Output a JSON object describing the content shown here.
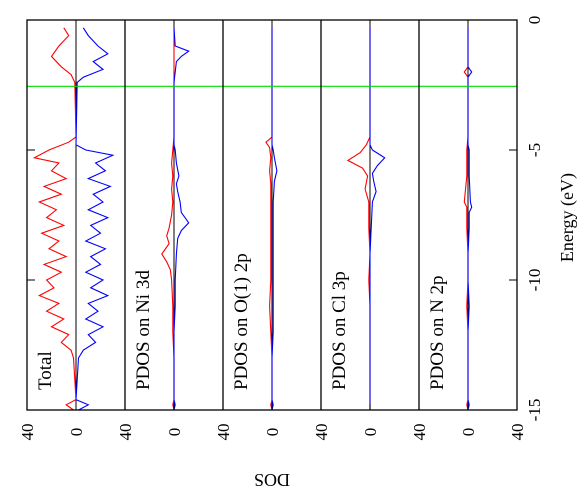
{
  "chart_data": {
    "type": "line",
    "x_axis": {
      "label": "Energy (eV)",
      "ticks": [
        0,
        -5,
        -10,
        -15
      ],
      "range": [
        -15,
        0
      ]
    },
    "y_axis": {
      "label": "DOS",
      "tick_labels": [
        "40",
        "0",
        "40",
        "0",
        "40",
        "0",
        "40",
        "0",
        "40",
        "0",
        "40"
      ],
      "panel_range": [
        -40,
        40
      ]
    },
    "reference_line": {
      "energy": -2.55,
      "color": "#00dd00"
    },
    "series_colors": {
      "spin_up": "#ff0000",
      "spin_down": "#0000ff"
    },
    "panels": [
      {
        "label": "Total",
        "up": [
          [
            -0.3,
            10
          ],
          [
            -0.6,
            6
          ],
          [
            -1.0,
            14
          ],
          [
            -1.4,
            20
          ],
          [
            -1.8,
            12
          ],
          [
            -2.1,
            4
          ],
          [
            -2.4,
            1
          ],
          [
            -4.5,
            0
          ],
          [
            -4.7,
            6
          ],
          [
            -5.0,
            22
          ],
          [
            -5.3,
            34
          ],
          [
            -5.5,
            14
          ],
          [
            -5.8,
            20
          ],
          [
            -6.1,
            8
          ],
          [
            -6.4,
            26
          ],
          [
            -6.7,
            12
          ],
          [
            -7.0,
            30
          ],
          [
            -7.3,
            16
          ],
          [
            -7.6,
            24
          ],
          [
            -7.9,
            10
          ],
          [
            -8.2,
            28
          ],
          [
            -8.5,
            14
          ],
          [
            -8.8,
            22
          ],
          [
            -9.1,
            8
          ],
          [
            -9.4,
            26
          ],
          [
            -9.7,
            12
          ],
          [
            -10.0,
            24
          ],
          [
            -10.3,
            18
          ],
          [
            -10.6,
            30
          ],
          [
            -10.9,
            14
          ],
          [
            -11.2,
            24
          ],
          [
            -11.5,
            10
          ],
          [
            -11.8,
            20
          ],
          [
            -12.1,
            6
          ],
          [
            -12.4,
            12
          ],
          [
            -12.7,
            4
          ],
          [
            -13.0,
            2
          ],
          [
            -14.6,
            0
          ],
          [
            -14.8,
            8
          ],
          [
            -15.0,
            2
          ]
        ],
        "down": [
          [
            -0.3,
            6
          ],
          [
            -0.6,
            10
          ],
          [
            -1.0,
            18
          ],
          [
            -1.3,
            26
          ],
          [
            -1.6,
            14
          ],
          [
            -1.9,
            22
          ],
          [
            -2.2,
            6
          ],
          [
            -2.4,
            1
          ],
          [
            -4.8,
            0
          ],
          [
            -5.0,
            8
          ],
          [
            -5.2,
            30
          ],
          [
            -5.5,
            16
          ],
          [
            -5.8,
            24
          ],
          [
            -6.1,
            10
          ],
          [
            -6.4,
            28
          ],
          [
            -6.7,
            14
          ],
          [
            -7.0,
            22
          ],
          [
            -7.3,
            10
          ],
          [
            -7.6,
            26
          ],
          [
            -7.9,
            12
          ],
          [
            -8.2,
            20
          ],
          [
            -8.5,
            8
          ],
          [
            -8.8,
            24
          ],
          [
            -9.1,
            12
          ],
          [
            -9.4,
            20
          ],
          [
            -9.7,
            8
          ],
          [
            -10.0,
            22
          ],
          [
            -10.3,
            12
          ],
          [
            -10.6,
            26
          ],
          [
            -10.9,
            10
          ],
          [
            -11.2,
            18
          ],
          [
            -11.5,
            8
          ],
          [
            -11.8,
            22
          ],
          [
            -12.1,
            10
          ],
          [
            -12.4,
            16
          ],
          [
            -12.7,
            6
          ],
          [
            -13.0,
            2
          ],
          [
            -14.6,
            0
          ],
          [
            -14.8,
            10
          ],
          [
            -15.0,
            2
          ]
        ]
      },
      {
        "label": "PDOS on Ni 3d",
        "up": [
          [
            -0.3,
            0
          ],
          [
            -1.0,
            0
          ],
          [
            -2.4,
            0
          ],
          [
            -4.5,
            0
          ],
          [
            -5.0,
            1
          ],
          [
            -5.5,
            2
          ],
          [
            -6.0,
            1
          ],
          [
            -6.5,
            2
          ],
          [
            -7.0,
            1
          ],
          [
            -7.5,
            2
          ],
          [
            -8.0,
            4
          ],
          [
            -8.3,
            6
          ],
          [
            -8.6,
            4
          ],
          [
            -9.0,
            10
          ],
          [
            -9.3,
            6
          ],
          [
            -9.6,
            3
          ],
          [
            -10.0,
            2
          ],
          [
            -11.0,
            1
          ],
          [
            -12.0,
            1
          ],
          [
            -13.0,
            0
          ],
          [
            -14.6,
            0
          ],
          [
            -14.8,
            1
          ],
          [
            -15.0,
            0
          ]
        ],
        "down": [
          [
            -0.3,
            0
          ],
          [
            -1.0,
            1
          ],
          [
            -1.2,
            12
          ],
          [
            -1.4,
            6
          ],
          [
            -1.6,
            2
          ],
          [
            -2.4,
            0
          ],
          [
            -4.8,
            0
          ],
          [
            -5.0,
            1
          ],
          [
            -5.5,
            2
          ],
          [
            -6.0,
            4
          ],
          [
            -6.3,
            2
          ],
          [
            -6.6,
            3
          ],
          [
            -7.0,
            5
          ],
          [
            -7.4,
            6
          ],
          [
            -7.8,
            12
          ],
          [
            -8.1,
            6
          ],
          [
            -8.4,
            3
          ],
          [
            -9.0,
            2
          ],
          [
            -10.0,
            1
          ],
          [
            -11.0,
            1
          ],
          [
            -12.0,
            0
          ],
          [
            -13.0,
            0
          ],
          [
            -14.6,
            0
          ],
          [
            -14.8,
            1
          ],
          [
            -15.0,
            0
          ]
        ]
      },
      {
        "label": "PDOS on O(1) 2p",
        "up": [
          [
            -0.3,
            0
          ],
          [
            -2.4,
            0
          ],
          [
            -4.5,
            0
          ],
          [
            -4.7,
            5
          ],
          [
            -4.9,
            2
          ],
          [
            -5.3,
            1
          ],
          [
            -5.8,
            2
          ],
          [
            -6.3,
            1
          ],
          [
            -7.0,
            1
          ],
          [
            -8.0,
            1
          ],
          [
            -9.0,
            1
          ],
          [
            -10.0,
            1
          ],
          [
            -11.0,
            2
          ],
          [
            -12.0,
            1
          ],
          [
            -13.0,
            0
          ],
          [
            -14.6,
            0
          ],
          [
            -14.8,
            1
          ],
          [
            -15.0,
            0
          ]
        ],
        "down": [
          [
            -0.3,
            0
          ],
          [
            -2.4,
            0
          ],
          [
            -4.8,
            0
          ],
          [
            -5.0,
            1
          ],
          [
            -5.3,
            2
          ],
          [
            -5.8,
            4
          ],
          [
            -6.2,
            2
          ],
          [
            -7.0,
            1
          ],
          [
            -8.0,
            1
          ],
          [
            -9.0,
            1
          ],
          [
            -10.0,
            1
          ],
          [
            -11.0,
            1
          ],
          [
            -12.0,
            1
          ],
          [
            -13.0,
            0
          ],
          [
            -14.6,
            0
          ],
          [
            -14.8,
            1
          ],
          [
            -15.0,
            0
          ]
        ]
      },
      {
        "label": "PDOS on Cl 3p",
        "up": [
          [
            -0.3,
            0
          ],
          [
            -2.4,
            0
          ],
          [
            -4.5,
            0
          ],
          [
            -4.8,
            3
          ],
          [
            -5.1,
            8
          ],
          [
            -5.4,
            18
          ],
          [
            -5.7,
            6
          ],
          [
            -6.0,
            2
          ],
          [
            -6.5,
            4
          ],
          [
            -7.0,
            1
          ],
          [
            -8.0,
            1
          ],
          [
            -9.0,
            0
          ],
          [
            -10.0,
            1
          ],
          [
            -11.0,
            0
          ],
          [
            -12.0,
            0
          ],
          [
            -14.6,
            0
          ],
          [
            -15.0,
            0
          ]
        ],
        "down": [
          [
            -0.3,
            0
          ],
          [
            -2.4,
            0
          ],
          [
            -4.8,
            0
          ],
          [
            -5.0,
            2
          ],
          [
            -5.3,
            12
          ],
          [
            -5.6,
            6
          ],
          [
            -5.9,
            2
          ],
          [
            -6.2,
            3
          ],
          [
            -6.6,
            5
          ],
          [
            -7.0,
            2
          ],
          [
            -8.0,
            1
          ],
          [
            -9.0,
            0
          ],
          [
            -10.0,
            0
          ],
          [
            -11.0,
            0
          ],
          [
            -12.0,
            0
          ],
          [
            -14.6,
            0
          ],
          [
            -15.0,
            0
          ]
        ]
      },
      {
        "label": "PDOS on N 2p",
        "up": [
          [
            -0.3,
            0
          ],
          [
            -1.8,
            0
          ],
          [
            -2.0,
            3
          ],
          [
            -2.2,
            0
          ],
          [
            -2.4,
            0
          ],
          [
            -4.5,
            0
          ],
          [
            -5.0,
            1
          ],
          [
            -6.0,
            1
          ],
          [
            -7.0,
            3
          ],
          [
            -7.2,
            1
          ],
          [
            -8.0,
            1
          ],
          [
            -9.0,
            0
          ],
          [
            -10.0,
            0
          ],
          [
            -11.0,
            1
          ],
          [
            -12.0,
            0
          ],
          [
            -13.0,
            0
          ],
          [
            -14.6,
            0
          ],
          [
            -14.8,
            1
          ],
          [
            -15.0,
            0
          ]
        ],
        "down": [
          [
            -0.3,
            0
          ],
          [
            -1.8,
            0
          ],
          [
            -2.0,
            3
          ],
          [
            -2.2,
            0
          ],
          [
            -2.4,
            0
          ],
          [
            -4.8,
            0
          ],
          [
            -5.0,
            1
          ],
          [
            -6.0,
            1
          ],
          [
            -7.0,
            2
          ],
          [
            -7.2,
            3
          ],
          [
            -7.4,
            1
          ],
          [
            -8.0,
            1
          ],
          [
            -9.0,
            0
          ],
          [
            -10.0,
            0
          ],
          [
            -11.0,
            1
          ],
          [
            -12.0,
            0
          ],
          [
            -13.0,
            0
          ],
          [
            -14.6,
            0
          ],
          [
            -14.8,
            1
          ],
          [
            -15.0,
            0
          ]
        ]
      }
    ]
  }
}
